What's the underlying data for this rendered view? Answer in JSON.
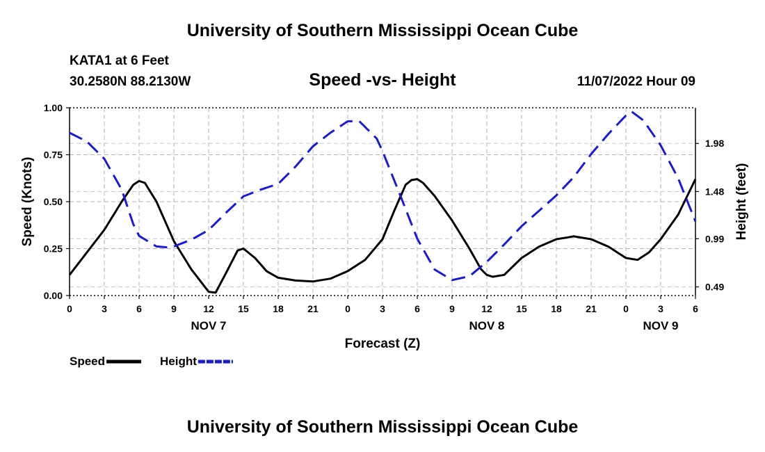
{
  "header": {
    "title": "University of Southern Mississippi Ocean Cube",
    "station": "KATA1 at 6 Feet",
    "coords": "30.2580N  88.2130W",
    "subtitle": "Speed -vs- Height",
    "timestamp": "11/07/2022 Hour 09"
  },
  "footer": {
    "title": "University of Southern Mississippi Ocean Cube"
  },
  "chart_data": {
    "type": "line",
    "title": "Speed -vs- Height",
    "xlabel": "Forecast (Z)",
    "ylabel": "Speed (Knots)",
    "y2label": "Height (feet)",
    "xlim": [
      0,
      54
    ],
    "ylim": [
      0,
      1.0
    ],
    "y2lim": [
      0.4,
      2.35
    ],
    "grid": true,
    "x_ticks": [
      0,
      3,
      6,
      9,
      12,
      15,
      18,
      21,
      24,
      27,
      30,
      33,
      36,
      39,
      42,
      45,
      48,
      51,
      54
    ],
    "x_tick_labels": [
      "0",
      "3",
      "6",
      "9",
      "12",
      "15",
      "18",
      "21",
      "0",
      "3",
      "6",
      "9",
      "12",
      "15",
      "18",
      "21",
      "0",
      "3",
      "6"
    ],
    "date_labels": [
      {
        "x": 12,
        "label": "NOV 7"
      },
      {
        "x": 36,
        "label": "NOV 8"
      },
      {
        "x": 51,
        "label": "NOV 9"
      }
    ],
    "y_ticks": [
      0.0,
      0.25,
      0.5,
      0.75,
      1.0
    ],
    "y_tick_labels": [
      "0.00",
      "0.25",
      "0.50",
      "0.75",
      "1.00"
    ],
    "y2_ticks": [
      0.49,
      0.99,
      1.48,
      1.98
    ],
    "y2_tick_labels": [
      "0.49",
      "0.99",
      "1.48",
      "1.98"
    ],
    "legend_position": "bottom-left",
    "series": [
      {
        "name": "Speed",
        "axis": "left",
        "color": "#000000",
        "style": "solid",
        "x": [
          0,
          1.5,
          3,
          4.5,
          5.5,
          6,
          6.5,
          7.5,
          9,
          10.5,
          12,
          12.6,
          13.5,
          14.5,
          15,
          16,
          17,
          18,
          19.5,
          21,
          22.5,
          24,
          25.5,
          27,
          28,
          29,
          29.5,
          30,
          30.5,
          31.5,
          33,
          34.5,
          35.5,
          36,
          36.5,
          37.5,
          39,
          40.5,
          42,
          43,
          43.5,
          45,
          46.5,
          48,
          49,
          50,
          51,
          52.5,
          54
        ],
        "values": [
          0.11,
          0.23,
          0.35,
          0.5,
          0.59,
          0.61,
          0.6,
          0.5,
          0.29,
          0.14,
          0.02,
          0.015,
          0.12,
          0.24,
          0.25,
          0.2,
          0.13,
          0.095,
          0.08,
          0.075,
          0.09,
          0.13,
          0.19,
          0.3,
          0.45,
          0.59,
          0.615,
          0.62,
          0.6,
          0.53,
          0.4,
          0.25,
          0.14,
          0.11,
          0.1,
          0.11,
          0.2,
          0.26,
          0.3,
          0.31,
          0.315,
          0.3,
          0.26,
          0.2,
          0.19,
          0.23,
          0.3,
          0.43,
          0.62
        ]
      },
      {
        "name": "Height",
        "axis": "right",
        "color": "#1a1ad4",
        "style": "dashed",
        "x": [
          0,
          1.5,
          3,
          4.5,
          5.5,
          6,
          7.5,
          8.5,
          9,
          10.5,
          12,
          13.5,
          15,
          16.5,
          18,
          19.5,
          21,
          22.5,
          24,
          25,
          26.5,
          27,
          28.5,
          30,
          31.5,
          33,
          34.5,
          36,
          37.5,
          39,
          40.5,
          42,
          43.5,
          45,
          46.5,
          48,
          48.5,
          49.5,
          51,
          52.5,
          54
        ],
        "values": [
          2.09,
          2.0,
          1.82,
          1.5,
          1.14,
          1.02,
          0.91,
          0.9,
          0.91,
          0.98,
          1.08,
          1.26,
          1.43,
          1.5,
          1.56,
          1.74,
          1.95,
          2.09,
          2.21,
          2.21,
          2.03,
          1.9,
          1.45,
          0.99,
          0.67,
          0.56,
          0.6,
          0.75,
          0.93,
          1.12,
          1.28,
          1.44,
          1.63,
          1.87,
          2.08,
          2.27,
          2.31,
          2.22,
          1.96,
          1.62,
          1.17
        ]
      }
    ]
  }
}
